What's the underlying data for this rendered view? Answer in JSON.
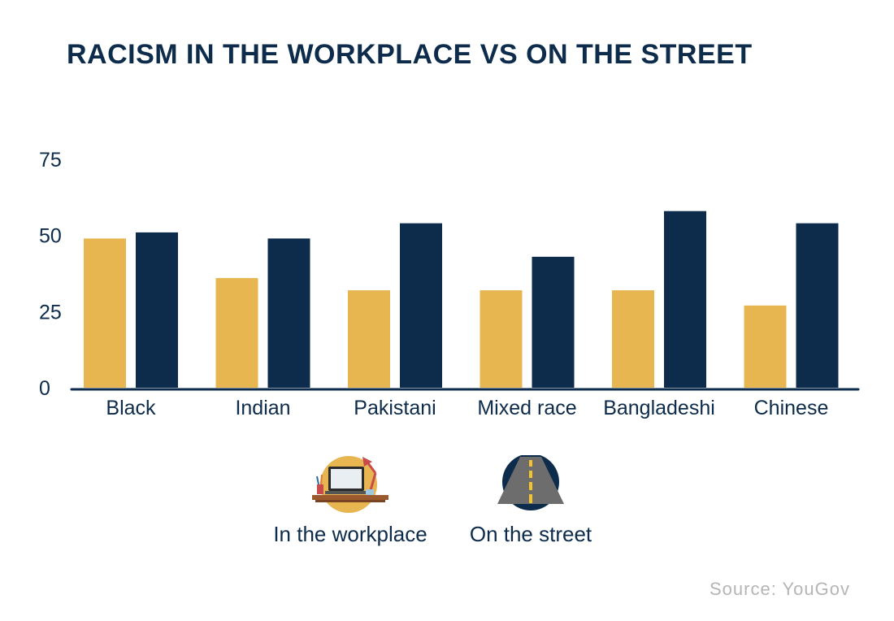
{
  "title": "RACISM IN THE WORKPLACE VS ON THE STREET",
  "source": "Source: YouGov",
  "chart_data": {
    "type": "bar",
    "title": "RACISM IN THE WORKPLACE VS ON THE STREET",
    "xlabel": "",
    "ylabel": "",
    "ylim": [
      0,
      75
    ],
    "yticks": [
      0,
      25,
      50,
      75
    ],
    "grid": false,
    "legend_position": "bottom-center",
    "categories": [
      "Black",
      "Indian",
      "Pakistani",
      "Mixed race",
      "Bangladeshi",
      "Chinese"
    ],
    "series": [
      {
        "name": "In the workplace",
        "color": "#e8b651",
        "icon": "desk-laptop-icon",
        "values": [
          49,
          36,
          32,
          32,
          32,
          27
        ]
      },
      {
        "name": "On the street",
        "color": "#0d2b4a",
        "icon": "road-icon",
        "values": [
          51,
          49,
          54,
          43,
          58,
          54
        ]
      }
    ]
  }
}
